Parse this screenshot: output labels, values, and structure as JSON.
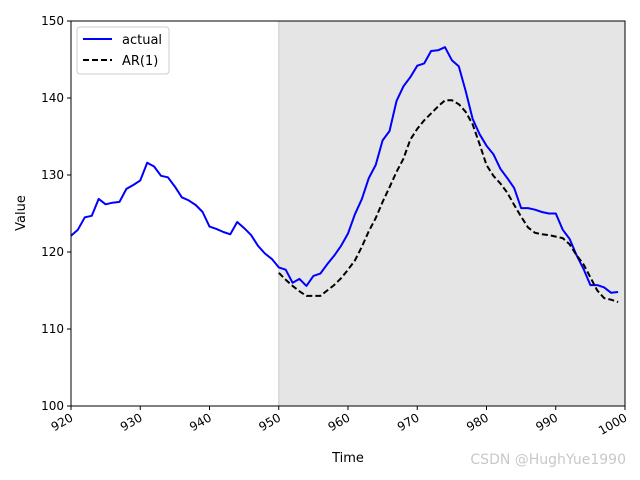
{
  "chart_data": {
    "type": "line",
    "xlabel": "Time",
    "ylabel": "Value",
    "xlim": [
      920,
      1000
    ],
    "ylim": [
      100,
      150
    ],
    "x_ticks": [
      "920",
      "930",
      "940",
      "950",
      "960",
      "970",
      "980",
      "990",
      "1000"
    ],
    "y_ticks": [
      "100",
      "110",
      "120",
      "130",
      "140",
      "150"
    ],
    "shaded_region": [
      950,
      1000
    ],
    "legend_position": "upper-left",
    "series": [
      {
        "name": "actual",
        "color": "#0000ff",
        "style": "solid",
        "x": [
          920,
          921,
          922,
          923,
          924,
          925,
          926,
          927,
          928,
          929,
          930,
          931,
          932,
          933,
          934,
          935,
          936,
          937,
          938,
          939,
          940,
          941,
          942,
          943,
          944,
          945,
          946,
          947,
          948,
          949,
          950,
          951,
          952,
          953,
          954,
          955,
          956,
          957,
          958,
          959,
          960,
          961,
          962,
          963,
          964,
          965,
          966,
          967,
          968,
          969,
          970,
          971,
          972,
          973,
          974,
          975,
          976,
          977,
          978,
          979,
          980,
          981,
          982,
          983,
          984,
          985,
          986,
          987,
          988,
          989,
          990,
          991,
          992,
          993,
          994,
          995,
          996,
          997,
          998,
          999
        ],
        "values": [
          122.1,
          122.9,
          124.5,
          124.7,
          126.9,
          126.2,
          126.4,
          126.5,
          128.2,
          128.7,
          129.3,
          131.6,
          131.1,
          129.9,
          129.7,
          128.5,
          127.1,
          126.7,
          126.1,
          125.2,
          123.3,
          123.0,
          122.6,
          122.3,
          123.9,
          123.1,
          122.2,
          120.8,
          119.8,
          119.1,
          118.0,
          117.7,
          116.0,
          116.5,
          115.6,
          116.9,
          117.2,
          118.4,
          119.5,
          120.8,
          122.4,
          124.9,
          126.9,
          129.6,
          131.3,
          134.5,
          135.7,
          139.6,
          141.5,
          142.7,
          144.2,
          144.5,
          146.1,
          146.2,
          146.6,
          144.9,
          144.1,
          140.9,
          137.3,
          135.3,
          133.8,
          132.7,
          130.8,
          129.6,
          128.3,
          125.7,
          125.7,
          125.5,
          125.2,
          125.0,
          125.0,
          122.9,
          121.7,
          119.6,
          117.8,
          115.7,
          115.7,
          115.4,
          114.7,
          114.8
        ]
      },
      {
        "name": "AR(1)",
        "color": "#000000",
        "style": "dashed",
        "x": [
          950,
          951,
          952,
          953,
          954,
          955,
          956,
          957,
          958,
          959,
          960,
          961,
          962,
          963,
          964,
          965,
          966,
          967,
          968,
          969,
          970,
          971,
          972,
          973,
          974,
          975,
          976,
          977,
          978,
          979,
          980,
          981,
          982,
          983,
          984,
          985,
          986,
          987,
          988,
          989,
          990,
          991,
          992,
          993,
          994,
          995,
          996,
          997,
          998,
          999
        ],
        "values": [
          117.3,
          116.4,
          115.6,
          114.9,
          114.3,
          114.3,
          114.3,
          115.0,
          115.7,
          116.6,
          117.7,
          118.9,
          120.7,
          122.7,
          124.4,
          126.5,
          128.4,
          130.4,
          132.1,
          134.6,
          136.0,
          137.1,
          138.0,
          138.9,
          139.7,
          139.7,
          139.2,
          138.2,
          136.6,
          134.0,
          131.3,
          129.9,
          128.9,
          127.7,
          126.1,
          124.6,
          123.2,
          122.5,
          122.3,
          122.2,
          122.0,
          121.8,
          121.0,
          119.6,
          118.4,
          116.7,
          115.0,
          114.0,
          113.8,
          113.5
        ]
      }
    ]
  },
  "watermark": "CSDN @HughYue1990"
}
